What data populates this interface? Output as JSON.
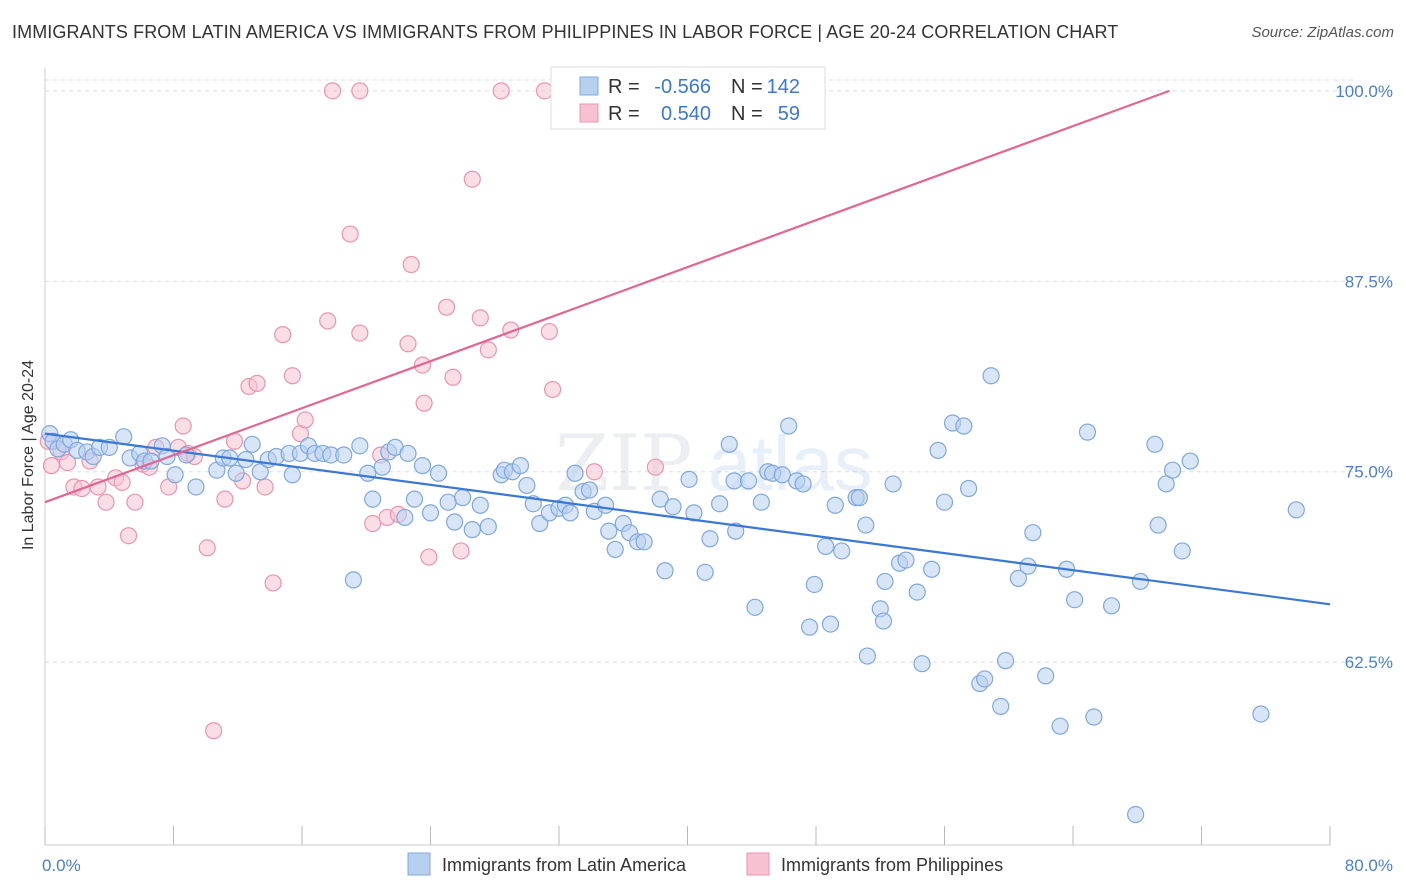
{
  "title": "IMMIGRANTS FROM LATIN AMERICA VS IMMIGRANTS FROM PHILIPPINES IN LABOR FORCE | AGE 20-24 CORRELATION CHART",
  "source": "Source: ZipAtlas.com",
  "watermark": {
    "zip": "ZIP",
    "atlas": "atlas"
  },
  "colors": {
    "blue_fill": "#b8d0f0",
    "blue_stroke": "#7fa8dc",
    "blue_line": "#3a78d4",
    "pink_fill": "#f6c2d2",
    "pink_stroke": "#ec93b0",
    "pink_line": "#e26592",
    "tick_text": "#4a7fd0",
    "grid": "#dddddd"
  },
  "stats": [
    {
      "r_label": "R =",
      "r_value": "-0.566",
      "n_label": "N =",
      "n_value": "142"
    },
    {
      "r_label": "R =",
      "r_value": "0.540",
      "n_label": "N =",
      "n_value": "59"
    }
  ],
  "legend": [
    "Immigrants from Latin America",
    "Immigrants from Philippines"
  ],
  "chart_data": {
    "type": "scatter",
    "ylabel": "In Labor Force | Age 20-24",
    "xlabel": "",
    "xlim": [
      0,
      80
    ],
    "ylim": [
      50.5,
      101.5
    ],
    "x_tick_labels": [
      {
        "value": 0,
        "label": "0.0%"
      },
      {
        "value": 80,
        "label": "80.0%"
      }
    ],
    "y_tick_labels": [
      {
        "value": 100,
        "label": "100.0%"
      },
      {
        "value": 87.5,
        "label": "87.5%"
      },
      {
        "value": 75,
        "label": "75.0%"
      },
      {
        "value": 62.5,
        "label": "62.5%"
      }
    ],
    "grid": "horizontal dashed",
    "legend_position": "bottom",
    "series": [
      {
        "name": "Immigrants from Latin America",
        "color": "#7fa8dc",
        "trend": [
          [
            0.0,
            77.5
          ],
          [
            80.0,
            66.3
          ]
        ],
        "points": [
          [
            0.3,
            77.5
          ],
          [
            0.5,
            77.0
          ],
          [
            0.8,
            76.5
          ],
          [
            1.2,
            76.8
          ],
          [
            1.6,
            77.1
          ],
          [
            2.0,
            76.4
          ],
          [
            2.6,
            76.3
          ],
          [
            3.0,
            76.0
          ],
          [
            3.4,
            76.6
          ],
          [
            4.0,
            76.6
          ],
          [
            4.9,
            77.3
          ],
          [
            5.3,
            75.9
          ],
          [
            5.9,
            76.2
          ],
          [
            6.2,
            75.7
          ],
          [
            6.6,
            75.7
          ],
          [
            7.3,
            76.7
          ],
          [
            7.6,
            76.0
          ],
          [
            8.1,
            74.8
          ],
          [
            8.8,
            76.1
          ],
          [
            9.4,
            74.0
          ],
          [
            10.7,
            75.1
          ],
          [
            11.1,
            75.9
          ],
          [
            11.5,
            75.9
          ],
          [
            11.9,
            74.9
          ],
          [
            12.5,
            75.8
          ],
          [
            12.9,
            76.8
          ],
          [
            13.4,
            75.0
          ],
          [
            13.9,
            75.8
          ],
          [
            14.4,
            76.0
          ],
          [
            15.2,
            76.2
          ],
          [
            15.4,
            74.8
          ],
          [
            15.9,
            76.2
          ],
          [
            16.4,
            76.7
          ],
          [
            16.8,
            76.2
          ],
          [
            17.3,
            76.2
          ],
          [
            17.8,
            76.1
          ],
          [
            18.6,
            76.1
          ],
          [
            19.2,
            67.9
          ],
          [
            19.6,
            76.7
          ],
          [
            20.1,
            74.9
          ],
          [
            20.4,
            73.2
          ],
          [
            21.0,
            75.3
          ],
          [
            21.4,
            76.3
          ],
          [
            21.8,
            76.6
          ],
          [
            22.4,
            72.0
          ],
          [
            22.6,
            76.2
          ],
          [
            23.0,
            73.2
          ],
          [
            23.5,
            75.4
          ],
          [
            24.0,
            72.3
          ],
          [
            24.5,
            74.9
          ],
          [
            25.1,
            73.0
          ],
          [
            25.5,
            71.7
          ],
          [
            26.0,
            73.3
          ],
          [
            26.6,
            71.2
          ],
          [
            27.1,
            72.8
          ],
          [
            27.6,
            71.4
          ],
          [
            28.4,
            74.8
          ],
          [
            28.6,
            75.1
          ],
          [
            29.1,
            75.0
          ],
          [
            29.6,
            75.4
          ],
          [
            30.0,
            74.1
          ],
          [
            30.4,
            72.9
          ],
          [
            30.8,
            71.6
          ],
          [
            31.4,
            72.3
          ],
          [
            32.0,
            72.6
          ],
          [
            32.4,
            72.8
          ],
          [
            32.7,
            72.3
          ],
          [
            33.0,
            74.9
          ],
          [
            33.5,
            73.7
          ],
          [
            33.9,
            73.8
          ],
          [
            34.2,
            72.4
          ],
          [
            34.9,
            72.8
          ],
          [
            35.1,
            71.1
          ],
          [
            35.5,
            69.9
          ],
          [
            36.0,
            71.6
          ],
          [
            36.4,
            71.0
          ],
          [
            36.9,
            70.4
          ],
          [
            37.3,
            70.4
          ],
          [
            38.3,
            73.2
          ],
          [
            38.6,
            68.5
          ],
          [
            39.1,
            72.7
          ],
          [
            40.1,
            74.5
          ],
          [
            40.4,
            72.3
          ],
          [
            41.1,
            68.4
          ],
          [
            41.4,
            70.6
          ],
          [
            42.0,
            72.9
          ],
          [
            42.6,
            76.8
          ],
          [
            42.9,
            74.4
          ],
          [
            43.0,
            71.1
          ],
          [
            43.8,
            74.4
          ],
          [
            44.2,
            66.1
          ],
          [
            44.6,
            73.0
          ],
          [
            45.0,
            75.0
          ],
          [
            45.3,
            74.9
          ],
          [
            45.9,
            74.8
          ],
          [
            46.3,
            78.0
          ],
          [
            46.8,
            74.4
          ],
          [
            47.2,
            74.2
          ],
          [
            47.6,
            64.8
          ],
          [
            47.9,
            67.6
          ],
          [
            48.6,
            70.1
          ],
          [
            48.9,
            65.0
          ],
          [
            49.2,
            72.8
          ],
          [
            49.6,
            69.8
          ],
          [
            50.5,
            73.3
          ],
          [
            50.7,
            73.3
          ],
          [
            51.1,
            71.5
          ],
          [
            51.2,
            62.9
          ],
          [
            52.0,
            66.0
          ],
          [
            52.3,
            67.8
          ],
          [
            52.8,
            74.2
          ],
          [
            52.2,
            65.2
          ],
          [
            53.2,
            69.0
          ],
          [
            53.6,
            69.2
          ],
          [
            54.3,
            67.1
          ],
          [
            54.6,
            62.4
          ],
          [
            55.2,
            68.6
          ],
          [
            55.6,
            76.4
          ],
          [
            56.0,
            73.0
          ],
          [
            56.5,
            78.2
          ],
          [
            57.2,
            78.0
          ],
          [
            57.5,
            73.9
          ],
          [
            58.2,
            61.1
          ],
          [
            58.5,
            61.4
          ],
          [
            58.9,
            81.3
          ],
          [
            59.5,
            59.6
          ],
          [
            59.8,
            62.6
          ],
          [
            60.6,
            68.0
          ],
          [
            61.2,
            68.8
          ],
          [
            61.5,
            71.0
          ],
          [
            62.3,
            61.6
          ],
          [
            63.2,
            58.3
          ],
          [
            63.6,
            68.6
          ],
          [
            64.1,
            66.6
          ],
          [
            64.9,
            77.6
          ],
          [
            65.3,
            58.9
          ],
          [
            66.4,
            66.2
          ],
          [
            67.9,
            52.5
          ],
          [
            68.2,
            67.8
          ],
          [
            69.1,
            76.8
          ],
          [
            69.3,
            71.5
          ],
          [
            69.8,
            74.2
          ],
          [
            70.2,
            75.1
          ],
          [
            70.8,
            69.8
          ],
          [
            71.3,
            75.7
          ],
          [
            75.7,
            59.1
          ],
          [
            77.9,
            72.5
          ]
        ]
      },
      {
        "name": "Immigrants from Philippines",
        "color": "#ec93b0",
        "trend": [
          [
            0.0,
            73.0
          ],
          [
            70.0,
            100.0
          ]
        ],
        "points": [
          [
            0.2,
            77.0
          ],
          [
            0.4,
            75.4
          ],
          [
            1.0,
            76.3
          ],
          [
            1.4,
            75.6
          ],
          [
            1.8,
            74.0
          ],
          [
            2.3,
            73.9
          ],
          [
            2.8,
            75.7
          ],
          [
            3.3,
            74.0
          ],
          [
            3.8,
            73.0
          ],
          [
            4.4,
            74.6
          ],
          [
            4.8,
            74.3
          ],
          [
            5.2,
            70.8
          ],
          [
            5.6,
            73.0
          ],
          [
            6.1,
            75.5
          ],
          [
            6.5,
            75.3
          ],
          [
            6.9,
            76.6
          ],
          [
            7.7,
            74.0
          ],
          [
            8.3,
            76.6
          ],
          [
            8.6,
            78.0
          ],
          [
            8.9,
            76.2
          ],
          [
            9.3,
            76.0
          ],
          [
            10.1,
            70.0
          ],
          [
            10.5,
            58.0
          ],
          [
            11.2,
            73.2
          ],
          [
            11.8,
            77.0
          ],
          [
            12.3,
            74.4
          ],
          [
            12.7,
            80.6
          ],
          [
            13.2,
            80.8
          ],
          [
            13.7,
            74.0
          ],
          [
            14.2,
            67.7
          ],
          [
            14.8,
            84.0
          ],
          [
            15.4,
            81.3
          ],
          [
            15.9,
            77.5
          ],
          [
            16.2,
            78.4
          ],
          [
            17.6,
            84.9
          ],
          [
            17.9,
            100.0
          ],
          [
            19.0,
            90.6
          ],
          [
            19.6,
            84.1
          ],
          [
            19.6,
            100.0
          ],
          [
            20.4,
            71.6
          ],
          [
            20.9,
            76.1
          ],
          [
            21.3,
            72.0
          ],
          [
            22.0,
            72.2
          ],
          [
            22.6,
            83.4
          ],
          [
            22.8,
            88.6
          ],
          [
            23.5,
            82.0
          ],
          [
            23.6,
            79.5
          ],
          [
            23.9,
            69.4
          ],
          [
            25.0,
            85.8
          ],
          [
            25.4,
            81.2
          ],
          [
            25.9,
            69.8
          ],
          [
            26.6,
            94.2
          ],
          [
            27.1,
            85.1
          ],
          [
            27.6,
            83.0
          ],
          [
            28.4,
            100.0
          ],
          [
            29.0,
            84.3
          ],
          [
            31.1,
            100.0
          ],
          [
            31.4,
            84.2
          ],
          [
            31.6,
            80.4
          ],
          [
            34.2,
            75.0
          ],
          [
            38.0,
            75.3
          ],
          [
            41.7,
            100.0
          ]
        ]
      }
    ]
  }
}
